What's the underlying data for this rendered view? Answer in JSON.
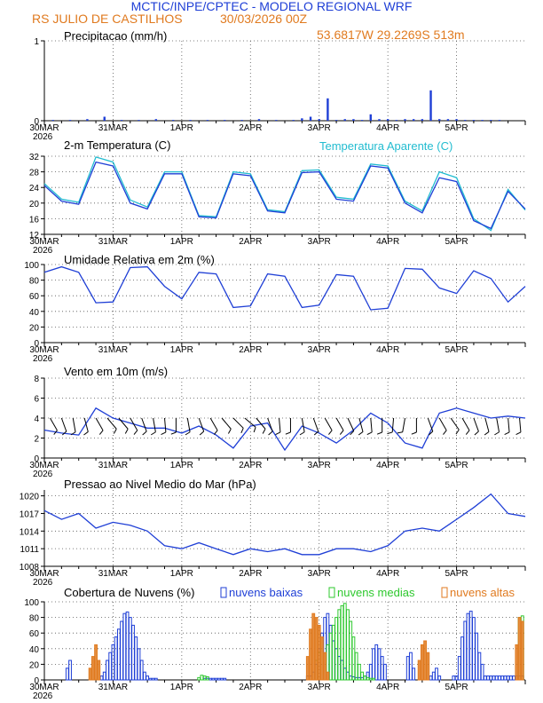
{
  "header": {
    "title": "MCTIC/INPE/CPTEC - MODELO REGIONAL WRF",
    "location": "RS JULIO DE CASTILHOS",
    "run": "30/03/2026 00Z",
    "coords": "53.6817W 29.2269S 513m"
  },
  "x_axis": {
    "labels": [
      "30MAR",
      "31MAR",
      "1APR",
      "2APR",
      "3APR",
      "4APR",
      "5APR"
    ],
    "year": "2026",
    "range_days": [
      0,
      7
    ]
  },
  "colors": {
    "primary": "#1f3fd6",
    "secondary": "#22bcd0",
    "low_clouds": "#1f3fd6",
    "mid_clouds": "#2ec82e",
    "high_clouds": "#e07a1f",
    "header_blue": "#1f3fd6",
    "header_orange": "#e07a1f"
  },
  "chart_data": [
    {
      "id": "precip",
      "type": "bar",
      "title": "Precipitacao (mm/h)",
      "ylim": [
        0,
        1
      ],
      "yticks": [
        0,
        1
      ],
      "x_hours": [
        3,
        9,
        15,
        21,
        27,
        33,
        39,
        45,
        51,
        57,
        63,
        69,
        75,
        81,
        87,
        90,
        93,
        96,
        99,
        102,
        105,
        108,
        111,
        114,
        117,
        120,
        123,
        126,
        129,
        132,
        135,
        138,
        141,
        144,
        147,
        150,
        153,
        156,
        159
      ],
      "values": [
        0.01,
        0.01,
        0.02,
        0.05,
        0.01,
        0.01,
        0.02,
        0.01,
        0.01,
        0.01,
        0.01,
        0.01,
        0.02,
        0.01,
        0.01,
        0.03,
        0.05,
        0.02,
        0.28,
        0.01,
        0.02,
        0.02,
        0.01,
        0.08,
        0.02,
        0.02,
        0.01,
        0.02,
        0.02,
        0.02,
        0.38,
        0.02,
        0.02,
        0.02,
        0.01,
        0.01,
        0.01,
        0.01,
        0.01
      ]
    },
    {
      "id": "temperature",
      "type": "line",
      "title": "2-m Temperatura (C)",
      "legend": "Temperatura Aparente (C)",
      "ylim": [
        12,
        32
      ],
      "yticks": [
        12,
        16,
        20,
        24,
        28,
        32
      ],
      "x_hours": [
        0,
        6,
        12,
        18,
        24,
        30,
        36,
        42,
        48,
        54,
        60,
        66,
        72,
        78,
        84,
        90,
        96,
        102,
        108,
        114,
        120,
        126,
        132,
        138,
        144,
        150,
        156,
        162,
        168
      ],
      "series": [
        {
          "name": "Temperatura 2m",
          "values": [
            24.5,
            20.5,
            19.7,
            30.5,
            29.5,
            20.0,
            18.5,
            27.5,
            27.5,
            16.5,
            16.2,
            27.5,
            27.0,
            18.0,
            17.5,
            27.8,
            28.0,
            21.0,
            20.5,
            29.5,
            29.0,
            20.0,
            17.5,
            26.5,
            25.5,
            15.5,
            13.5,
            23.0,
            18.5
          ]
        },
        {
          "name": "Temperatura Aparente",
          "values": [
            25.0,
            21.0,
            20.2,
            31.8,
            30.5,
            20.8,
            19.0,
            28.0,
            28.0,
            16.8,
            16.5,
            28.0,
            27.5,
            18.3,
            17.8,
            28.3,
            28.5,
            21.5,
            21.0,
            30.0,
            29.5,
            20.5,
            18.0,
            28.0,
            26.5,
            16.0,
            13.0,
            23.5,
            18.2
          ]
        }
      ]
    },
    {
      "id": "humidity",
      "type": "line",
      "title": "Umidade Relativa em 2m (%)",
      "ylim": [
        0,
        100
      ],
      "yticks": [
        0,
        20,
        40,
        60,
        80,
        100
      ],
      "x_hours": [
        0,
        6,
        12,
        18,
        24,
        30,
        36,
        42,
        48,
        54,
        60,
        66,
        72,
        78,
        84,
        90,
        96,
        102,
        108,
        114,
        120,
        126,
        132,
        138,
        144,
        150,
        156,
        162,
        168
      ],
      "series": [
        {
          "name": "Umidade Relativa",
          "values": [
            90,
            97,
            90,
            51,
            52,
            96,
            97,
            72,
            56,
            90,
            88,
            45,
            47,
            88,
            85,
            45,
            48,
            87,
            85,
            42,
            44,
            95,
            94,
            70,
            63,
            92,
            82,
            52,
            72
          ]
        }
      ]
    },
    {
      "id": "wind",
      "type": "line",
      "title": "Vento em 10m (m/s)",
      "ylim": [
        0,
        8
      ],
      "yticks": [
        0,
        2,
        4,
        6,
        8
      ],
      "x_hours": [
        0,
        6,
        12,
        18,
        24,
        30,
        36,
        42,
        48,
        54,
        60,
        66,
        72,
        78,
        84,
        90,
        96,
        102,
        108,
        114,
        120,
        126,
        132,
        138,
        144,
        150,
        156,
        162,
        168
      ],
      "series": [
        {
          "name": "Velocidade do vento",
          "values": [
            2.8,
            2.5,
            2.3,
            5.0,
            4.0,
            3.5,
            3.0,
            3.0,
            2.5,
            3.2,
            2.3,
            1.0,
            3.2,
            3.5,
            0.8,
            3.2,
            2.5,
            1.5,
            2.8,
            4.5,
            3.5,
            1.5,
            1.0,
            4.5,
            5.0,
            4.5,
            4.0,
            4.2,
            4.0
          ]
        }
      ],
      "barbs": {
        "baseline": 4,
        "x_hours": [
          2,
          6,
          10,
          14,
          18,
          22,
          26,
          30,
          34,
          38,
          42,
          46,
          50,
          54,
          58,
          62,
          66,
          70,
          74,
          78,
          82,
          86,
          90,
          94,
          98,
          102,
          106,
          110,
          114,
          118,
          122,
          126,
          130,
          134,
          138,
          142,
          146,
          150,
          154,
          158,
          162,
          166
        ],
        "direction_deg": [
          150,
          160,
          170,
          165,
          150,
          140,
          140,
          150,
          160,
          170,
          175,
          180,
          170,
          160,
          150,
          140,
          135,
          130,
          140,
          160,
          175,
          180,
          170,
          160,
          150,
          150,
          155,
          165,
          175,
          180,
          185,
          190,
          180,
          160,
          150,
          145,
          150,
          160,
          165,
          170,
          175,
          175
        ]
      }
    },
    {
      "id": "pressure",
      "type": "line",
      "title": "Pressao ao Nivel Medio do Mar (hPa)",
      "ylim": [
        1008,
        1021
      ],
      "yticks": [
        1008,
        1011,
        1014,
        1017,
        1020
      ],
      "x_hours": [
        0,
        6,
        12,
        18,
        24,
        30,
        36,
        42,
        48,
        54,
        60,
        66,
        72,
        78,
        84,
        90,
        96,
        102,
        108,
        114,
        120,
        126,
        132,
        138,
        144,
        150,
        156,
        162,
        168
      ],
      "series": [
        {
          "name": "Pressao",
          "values": [
            1017.5,
            1016.0,
            1017.0,
            1014.5,
            1015.5,
            1015.0,
            1014.0,
            1011.5,
            1011.0,
            1012.0,
            1011.0,
            1010.0,
            1011.0,
            1010.5,
            1011.0,
            1010.0,
            1010.0,
            1011.0,
            1011.0,
            1010.5,
            1011.5,
            1014.0,
            1014.5,
            1014.0,
            1016.0,
            1018.0,
            1020.3,
            1017.0,
            1016.5
          ]
        }
      ]
    },
    {
      "id": "clouds",
      "type": "bar",
      "title": "Cobertura de Nuvens (%)",
      "legend": [
        "nuvens baixas",
        "nuvens medias",
        "nuvens altas"
      ],
      "ylim": [
        0,
        100
      ],
      "yticks": [
        0,
        20,
        40,
        60,
        80,
        100
      ],
      "series": [
        {
          "name": "nuvens baixas",
          "x_hours": [
            8,
            9,
            20,
            21,
            22,
            23,
            24,
            25,
            26,
            27,
            28,
            29,
            30,
            31,
            32,
            33,
            34,
            35,
            36,
            37,
            38,
            39,
            56,
            57,
            58,
            59,
            60,
            61,
            62,
            63,
            92,
            93,
            94,
            95,
            96,
            97,
            98,
            99,
            100,
            101,
            102,
            103,
            104,
            105,
            106,
            107,
            108,
            109,
            110,
            111,
            112,
            113,
            114,
            115,
            116,
            117,
            118,
            119,
            127,
            128,
            129,
            135,
            136,
            137,
            138,
            143,
            144,
            145,
            146,
            147,
            148,
            149,
            150,
            151,
            152,
            153,
            154,
            155,
            156,
            157,
            158,
            159,
            160,
            161,
            162,
            163,
            164,
            165,
            166,
            167
          ],
          "values": [
            15,
            25,
            5,
            10,
            25,
            35,
            45,
            55,
            65,
            75,
            85,
            87,
            80,
            70,
            55,
            40,
            25,
            10,
            5,
            2,
            2,
            2,
            2,
            2,
            2,
            2,
            2,
            2,
            2,
            2,
            5,
            5,
            10,
            20,
            40,
            60,
            80,
            85,
            70,
            50,
            40,
            30,
            25,
            15,
            10,
            5,
            4,
            3,
            3,
            3,
            5,
            10,
            20,
            40,
            45,
            40,
            30,
            20,
            30,
            35,
            15,
            5,
            10,
            15,
            5,
            5,
            5,
            30,
            55,
            75,
            85,
            88,
            80,
            60,
            35,
            20,
            5,
            5,
            5,
            5,
            5,
            5,
            5,
            5,
            5,
            5,
            5,
            5,
            5,
            5
          ]
        },
        {
          "name": "nuvens medias",
          "x_hours": [
            54,
            55,
            56,
            57,
            95,
            96,
            99,
            100,
            101,
            102,
            103,
            104,
            105,
            106,
            107,
            108,
            109,
            110,
            111,
            112,
            113,
            114,
            115,
            166,
            167
          ],
          "values": [
            3,
            6,
            5,
            4,
            25,
            35,
            45,
            60,
            70,
            80,
            90,
            95,
            98,
            90,
            75,
            55,
            35,
            20,
            10,
            5,
            3,
            2,
            2,
            80,
            82
          ]
        },
        {
          "name": "nuvens altas",
          "x_hours": [
            16,
            17,
            18,
            19,
            92,
            93,
            94,
            95,
            96,
            97,
            98,
            99,
            131,
            132,
            133,
            134,
            165,
            166,
            167
          ],
          "values": [
            15,
            30,
            45,
            25,
            30,
            65,
            85,
            80,
            70,
            55,
            35,
            10,
            25,
            45,
            50,
            35,
            45,
            80,
            75
          ]
        }
      ]
    }
  ]
}
